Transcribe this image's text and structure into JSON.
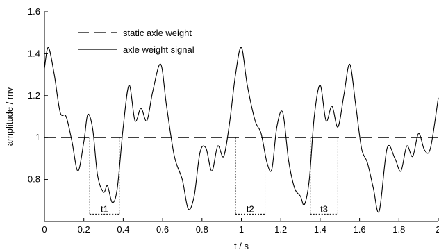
{
  "chart_data": {
    "type": "line",
    "xlabel": "t / s",
    "ylabel": "amplitude / mv",
    "xlim": [
      0,
      2.0
    ],
    "ylim": [
      0.6,
      1.6
    ],
    "x_ticks": [
      0,
      0.2,
      0.4,
      0.6,
      0.8,
      1.0,
      1.2,
      1.4,
      1.6,
      1.8,
      2.0
    ],
    "x_tick_labels": [
      "0",
      "0.2",
      "0.4",
      "0.6",
      "0.8",
      "1",
      "1.2",
      "1.4",
      "1.6",
      "1.8",
      "2"
    ],
    "y_ticks": [
      0.8,
      1.0,
      1.2,
      1.4,
      1.6
    ],
    "y_tick_labels": [
      "0.8",
      "1",
      "1.2",
      "1.4",
      "1.6"
    ],
    "grid": false,
    "legend_position": "top-left",
    "series": [
      {
        "name": "static axle weight",
        "style": "dashed",
        "x": [
          0,
          2.0
        ],
        "y": [
          1.0,
          1.0
        ]
      },
      {
        "name": "axle weight signal",
        "style": "solid",
        "x": [
          0,
          0.02,
          0.05,
          0.08,
          0.11,
          0.14,
          0.17,
          0.2,
          0.22,
          0.245,
          0.27,
          0.3,
          0.32,
          0.345,
          0.37,
          0.4,
          0.43,
          0.46,
          0.49,
          0.52,
          0.55,
          0.59,
          0.62,
          0.66,
          0.7,
          0.73,
          0.76,
          0.79,
          0.82,
          0.85,
          0.88,
          0.91,
          0.94,
          0.97,
          1.0,
          1.03,
          1.07,
          1.1,
          1.13,
          1.155,
          1.18,
          1.21,
          1.24,
          1.27,
          1.3,
          1.32,
          1.345,
          1.37,
          1.4,
          1.43,
          1.46,
          1.49,
          1.52,
          1.55,
          1.58,
          1.61,
          1.64,
          1.67,
          1.7,
          1.74,
          1.78,
          1.81,
          1.84,
          1.87,
          1.9,
          1.93,
          1.96,
          2.0
        ],
        "y": [
          1.33,
          1.43,
          1.3,
          1.12,
          1.1,
          0.98,
          0.84,
          0.98,
          1.11,
          1.04,
          0.82,
          0.74,
          0.77,
          0.69,
          0.76,
          1.05,
          1.25,
          1.08,
          1.14,
          1.08,
          1.22,
          1.35,
          1.15,
          0.91,
          0.8,
          0.66,
          0.72,
          0.93,
          0.95,
          0.84,
          0.96,
          0.91,
          1.07,
          1.3,
          1.43,
          1.25,
          1.08,
          1.02,
          0.88,
          0.85,
          1.05,
          1.12,
          0.89,
          0.76,
          0.72,
          0.68,
          0.8,
          1.1,
          1.25,
          1.08,
          1.15,
          1.05,
          1.2,
          1.35,
          1.16,
          0.95,
          0.88,
          0.76,
          0.65,
          0.95,
          0.9,
          0.84,
          0.96,
          0.91,
          1.02,
          0.94,
          0.95,
          1.19
        ]
      }
    ],
    "annotations": [
      {
        "label": "t1",
        "x_start": 0.23,
        "x_end": 0.38
      },
      {
        "label": "t2",
        "x_start": 0.97,
        "x_end": 1.12
      },
      {
        "label": "t3",
        "x_start": 1.35,
        "x_end": 1.49
      }
    ]
  }
}
